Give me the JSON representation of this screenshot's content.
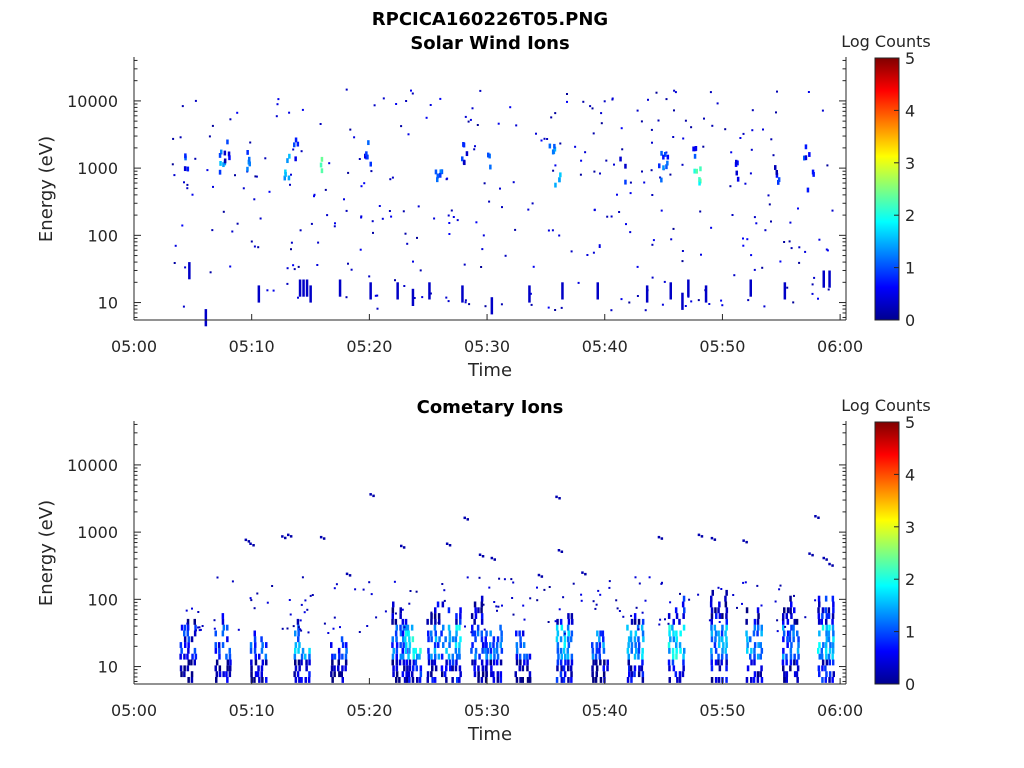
{
  "figure": {
    "filename": "RPCICA160226T05.PNG"
  },
  "chart_data": [
    {
      "type": "heatmap",
      "title": "Solar Wind Ions",
      "xlabel": "Time",
      "ylabel": "Energy (eV)",
      "x_ticks": [
        "05:00",
        "05:10",
        "05:20",
        "05:30",
        "05:40",
        "05:50",
        "06:00"
      ],
      "xlim_minutes": [
        0,
        60.5
      ],
      "y_scale": "log",
      "ylim": [
        5.5,
        45000
      ],
      "y_ticks": [
        {
          "value": 10,
          "label": "10"
        },
        {
          "value": 100,
          "label": "100"
        },
        {
          "value": 1000,
          "label": "1000"
        },
        {
          "value": 10000,
          "label": "10000"
        }
      ],
      "colorbar": {
        "label": "Log Counts",
        "min": 0,
        "max": 5,
        "ticks": [
          "0",
          "1",
          "2",
          "3",
          "4",
          "5"
        ],
        "colormap": "jet"
      },
      "high_energy_bursts": [
        {
          "t": 4.3,
          "e": 1500,
          "v": 1.2
        },
        {
          "t": 7.5,
          "e": 1300,
          "v": 1.6
        },
        {
          "t": 7.9,
          "e": 1800,
          "v": 1.0
        },
        {
          "t": 9.7,
          "e": 1300,
          "v": 1.4
        },
        {
          "t": 12.9,
          "e": 1100,
          "v": 1.9
        },
        {
          "t": 13.8,
          "e": 2100,
          "v": 1.0
        },
        {
          "t": 16.0,
          "e": 1000,
          "v": 2.4
        },
        {
          "t": 19.8,
          "e": 1800,
          "v": 1.3
        },
        {
          "t": 25.8,
          "e": 1000,
          "v": 1.5
        },
        {
          "t": 27.9,
          "e": 1900,
          "v": 1.1
        },
        {
          "t": 30.0,
          "e": 1600,
          "v": 1.2
        },
        {
          "t": 35.5,
          "e": 1900,
          "v": 1.8
        },
        {
          "t": 35.9,
          "e": 900,
          "v": 2.2
        },
        {
          "t": 41.5,
          "e": 1000,
          "v": 1.0
        },
        {
          "t": 44.8,
          "e": 900,
          "v": 1.5
        },
        {
          "t": 45.0,
          "e": 1700,
          "v": 1.3
        },
        {
          "t": 47.8,
          "e": 900,
          "v": 2.5
        },
        {
          "t": 47.6,
          "e": 1900,
          "v": 1.1
        },
        {
          "t": 51.0,
          "e": 1100,
          "v": 0.9
        },
        {
          "t": 54.5,
          "e": 800,
          "v": 1.0
        },
        {
          "t": 57.0,
          "e": 2000,
          "v": 1.2
        },
        {
          "t": 57.4,
          "e": 650,
          "v": 0.9
        }
      ],
      "low_energy_streaks": [
        {
          "t": 4.6,
          "e": 40
        },
        {
          "t": 6.0,
          "e": 8
        },
        {
          "t": 10.5,
          "e": 18
        },
        {
          "t": 14.0,
          "e": 22
        },
        {
          "t": 14.3,
          "e": 22
        },
        {
          "t": 14.6,
          "e": 22
        },
        {
          "t": 14.9,
          "e": 18
        },
        {
          "t": 17.4,
          "e": 22
        },
        {
          "t": 20.0,
          "e": 20
        },
        {
          "t": 22.3,
          "e": 20
        },
        {
          "t": 23.6,
          "e": 16
        },
        {
          "t": 25.0,
          "e": 20
        },
        {
          "t": 27.8,
          "e": 18
        },
        {
          "t": 30.3,
          "e": 12
        },
        {
          "t": 33.5,
          "e": 18
        },
        {
          "t": 36.3,
          "e": 20
        },
        {
          "t": 39.3,
          "e": 20
        },
        {
          "t": 43.5,
          "e": 18
        },
        {
          "t": 45.5,
          "e": 20
        },
        {
          "t": 46.5,
          "e": 14
        },
        {
          "t": 47.0,
          "e": 22
        },
        {
          "t": 48.5,
          "e": 18
        },
        {
          "t": 52.3,
          "e": 22
        },
        {
          "t": 55.2,
          "e": 20
        },
        {
          "t": 58.5,
          "e": 30
        },
        {
          "t": 59.0,
          "e": 30
        }
      ]
    },
    {
      "type": "heatmap",
      "title": "Cometary Ions",
      "xlabel": "Time",
      "ylabel": "Energy (eV)",
      "x_ticks": [
        "05:00",
        "05:10",
        "05:20",
        "05:30",
        "05:40",
        "05:50",
        "06:00"
      ],
      "xlim_minutes": [
        0,
        60.5
      ],
      "y_scale": "log",
      "ylim": [
        5.5,
        45000
      ],
      "y_ticks": [
        {
          "value": 10,
          "label": "10"
        },
        {
          "value": 100,
          "label": "100"
        },
        {
          "value": 1000,
          "label": "1000"
        },
        {
          "value": 10000,
          "label": "10000"
        }
      ],
      "colorbar": {
        "label": "Log Counts",
        "min": 0,
        "max": 5,
        "ticks": [
          "0",
          "1",
          "2",
          "3",
          "4",
          "5"
        ],
        "colormap": "jet"
      },
      "bursts": [
        {
          "t": 4.5,
          "top": 90,
          "v": 1.1
        },
        {
          "t": 7.5,
          "top": 70,
          "v": 1.3
        },
        {
          "t": 10.5,
          "top": 40,
          "v": 1.4
        },
        {
          "t": 14.2,
          "top": 60,
          "v": 1.8
        },
        {
          "t": 17.3,
          "top": 45,
          "v": 1.2
        },
        {
          "t": 22.5,
          "top": 150,
          "v": 1.5
        },
        {
          "t": 23.6,
          "top": 60,
          "v": 2.1
        },
        {
          "t": 25.5,
          "top": 180,
          "v": 1.6
        },
        {
          "t": 27.0,
          "top": 90,
          "v": 2.0
        },
        {
          "t": 29.2,
          "top": 120,
          "v": 1.4
        },
        {
          "t": 30.5,
          "top": 60,
          "v": 1.6
        },
        {
          "t": 33.0,
          "top": 50,
          "v": 1.3
        },
        {
          "t": 36.5,
          "top": 80,
          "v": 1.9
        },
        {
          "t": 39.5,
          "top": 40,
          "v": 1.5
        },
        {
          "t": 42.5,
          "top": 70,
          "v": 1.8
        },
        {
          "t": 46.0,
          "top": 130,
          "v": 2.1
        },
        {
          "t": 49.6,
          "top": 180,
          "v": 1.7
        },
        {
          "t": 52.6,
          "top": 90,
          "v": 1.7
        },
        {
          "t": 55.7,
          "top": 130,
          "v": 1.5
        },
        {
          "t": 58.7,
          "top": 170,
          "v": 2.0
        }
      ],
      "isolated": [
        {
          "t": 9.4,
          "e": 800
        },
        {
          "t": 9.8,
          "e": 700
        },
        {
          "t": 12.5,
          "e": 900
        },
        {
          "t": 13.0,
          "e": 950
        },
        {
          "t": 15.8,
          "e": 880
        },
        {
          "t": 18.0,
          "e": 250
        },
        {
          "t": 20.0,
          "e": 3800
        },
        {
          "t": 22.6,
          "e": 650
        },
        {
          "t": 26.5,
          "e": 700
        },
        {
          "t": 29.3,
          "e": 480
        },
        {
          "t": 30.3,
          "e": 430
        },
        {
          "t": 34.3,
          "e": 240
        },
        {
          "t": 35.8,
          "e": 3500
        },
        {
          "t": 36.0,
          "e": 560
        },
        {
          "t": 38.0,
          "e": 260
        },
        {
          "t": 44.5,
          "e": 880
        },
        {
          "t": 47.9,
          "e": 950
        },
        {
          "t": 49.0,
          "e": 850
        },
        {
          "t": 51.7,
          "e": 780
        },
        {
          "t": 57.8,
          "e": 1800
        },
        {
          "t": 58.5,
          "e": 430
        },
        {
          "t": 59.0,
          "e": 350
        },
        {
          "t": 57.3,
          "e": 500
        },
        {
          "t": 28.0,
          "e": 1700
        }
      ]
    }
  ]
}
